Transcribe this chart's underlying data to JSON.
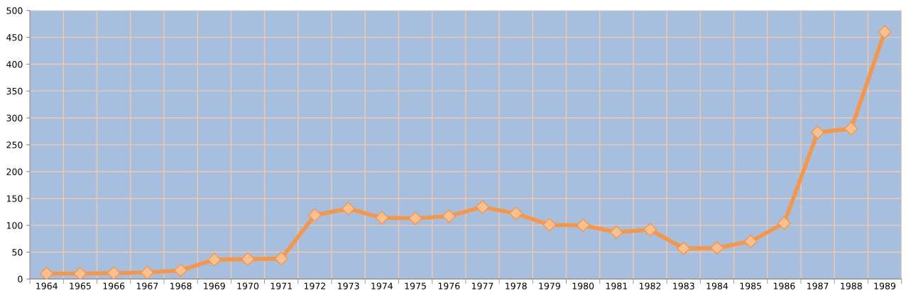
{
  "chart_data": {
    "type": "line",
    "categories": [
      "1964",
      "1965",
      "1966",
      "1967",
      "1968",
      "1969",
      "1970",
      "1971",
      "1972",
      "1973",
      "1974",
      "1975",
      "1976",
      "1977",
      "1978",
      "1979",
      "1980",
      "1981",
      "1982",
      "1983",
      "1984",
      "1985",
      "1986",
      "1987",
      "1988",
      "1989"
    ],
    "series": [
      {
        "color": "#f79646",
        "values": [
          10,
          10,
          11,
          12,
          16,
          36,
          37,
          38,
          119,
          131,
          114,
          113,
          117,
          134,
          122,
          101,
          100,
          87,
          92,
          57,
          58,
          70,
          104,
          273,
          280,
          460
        ]
      }
    ],
    "ylim": [
      0,
      500
    ],
    "yticks": [
      0,
      50,
      100,
      150,
      200,
      250,
      300,
      350,
      400,
      450,
      500
    ],
    "grid": true,
    "marker": "diamond",
    "line_style": "solid",
    "legend": false
  }
}
